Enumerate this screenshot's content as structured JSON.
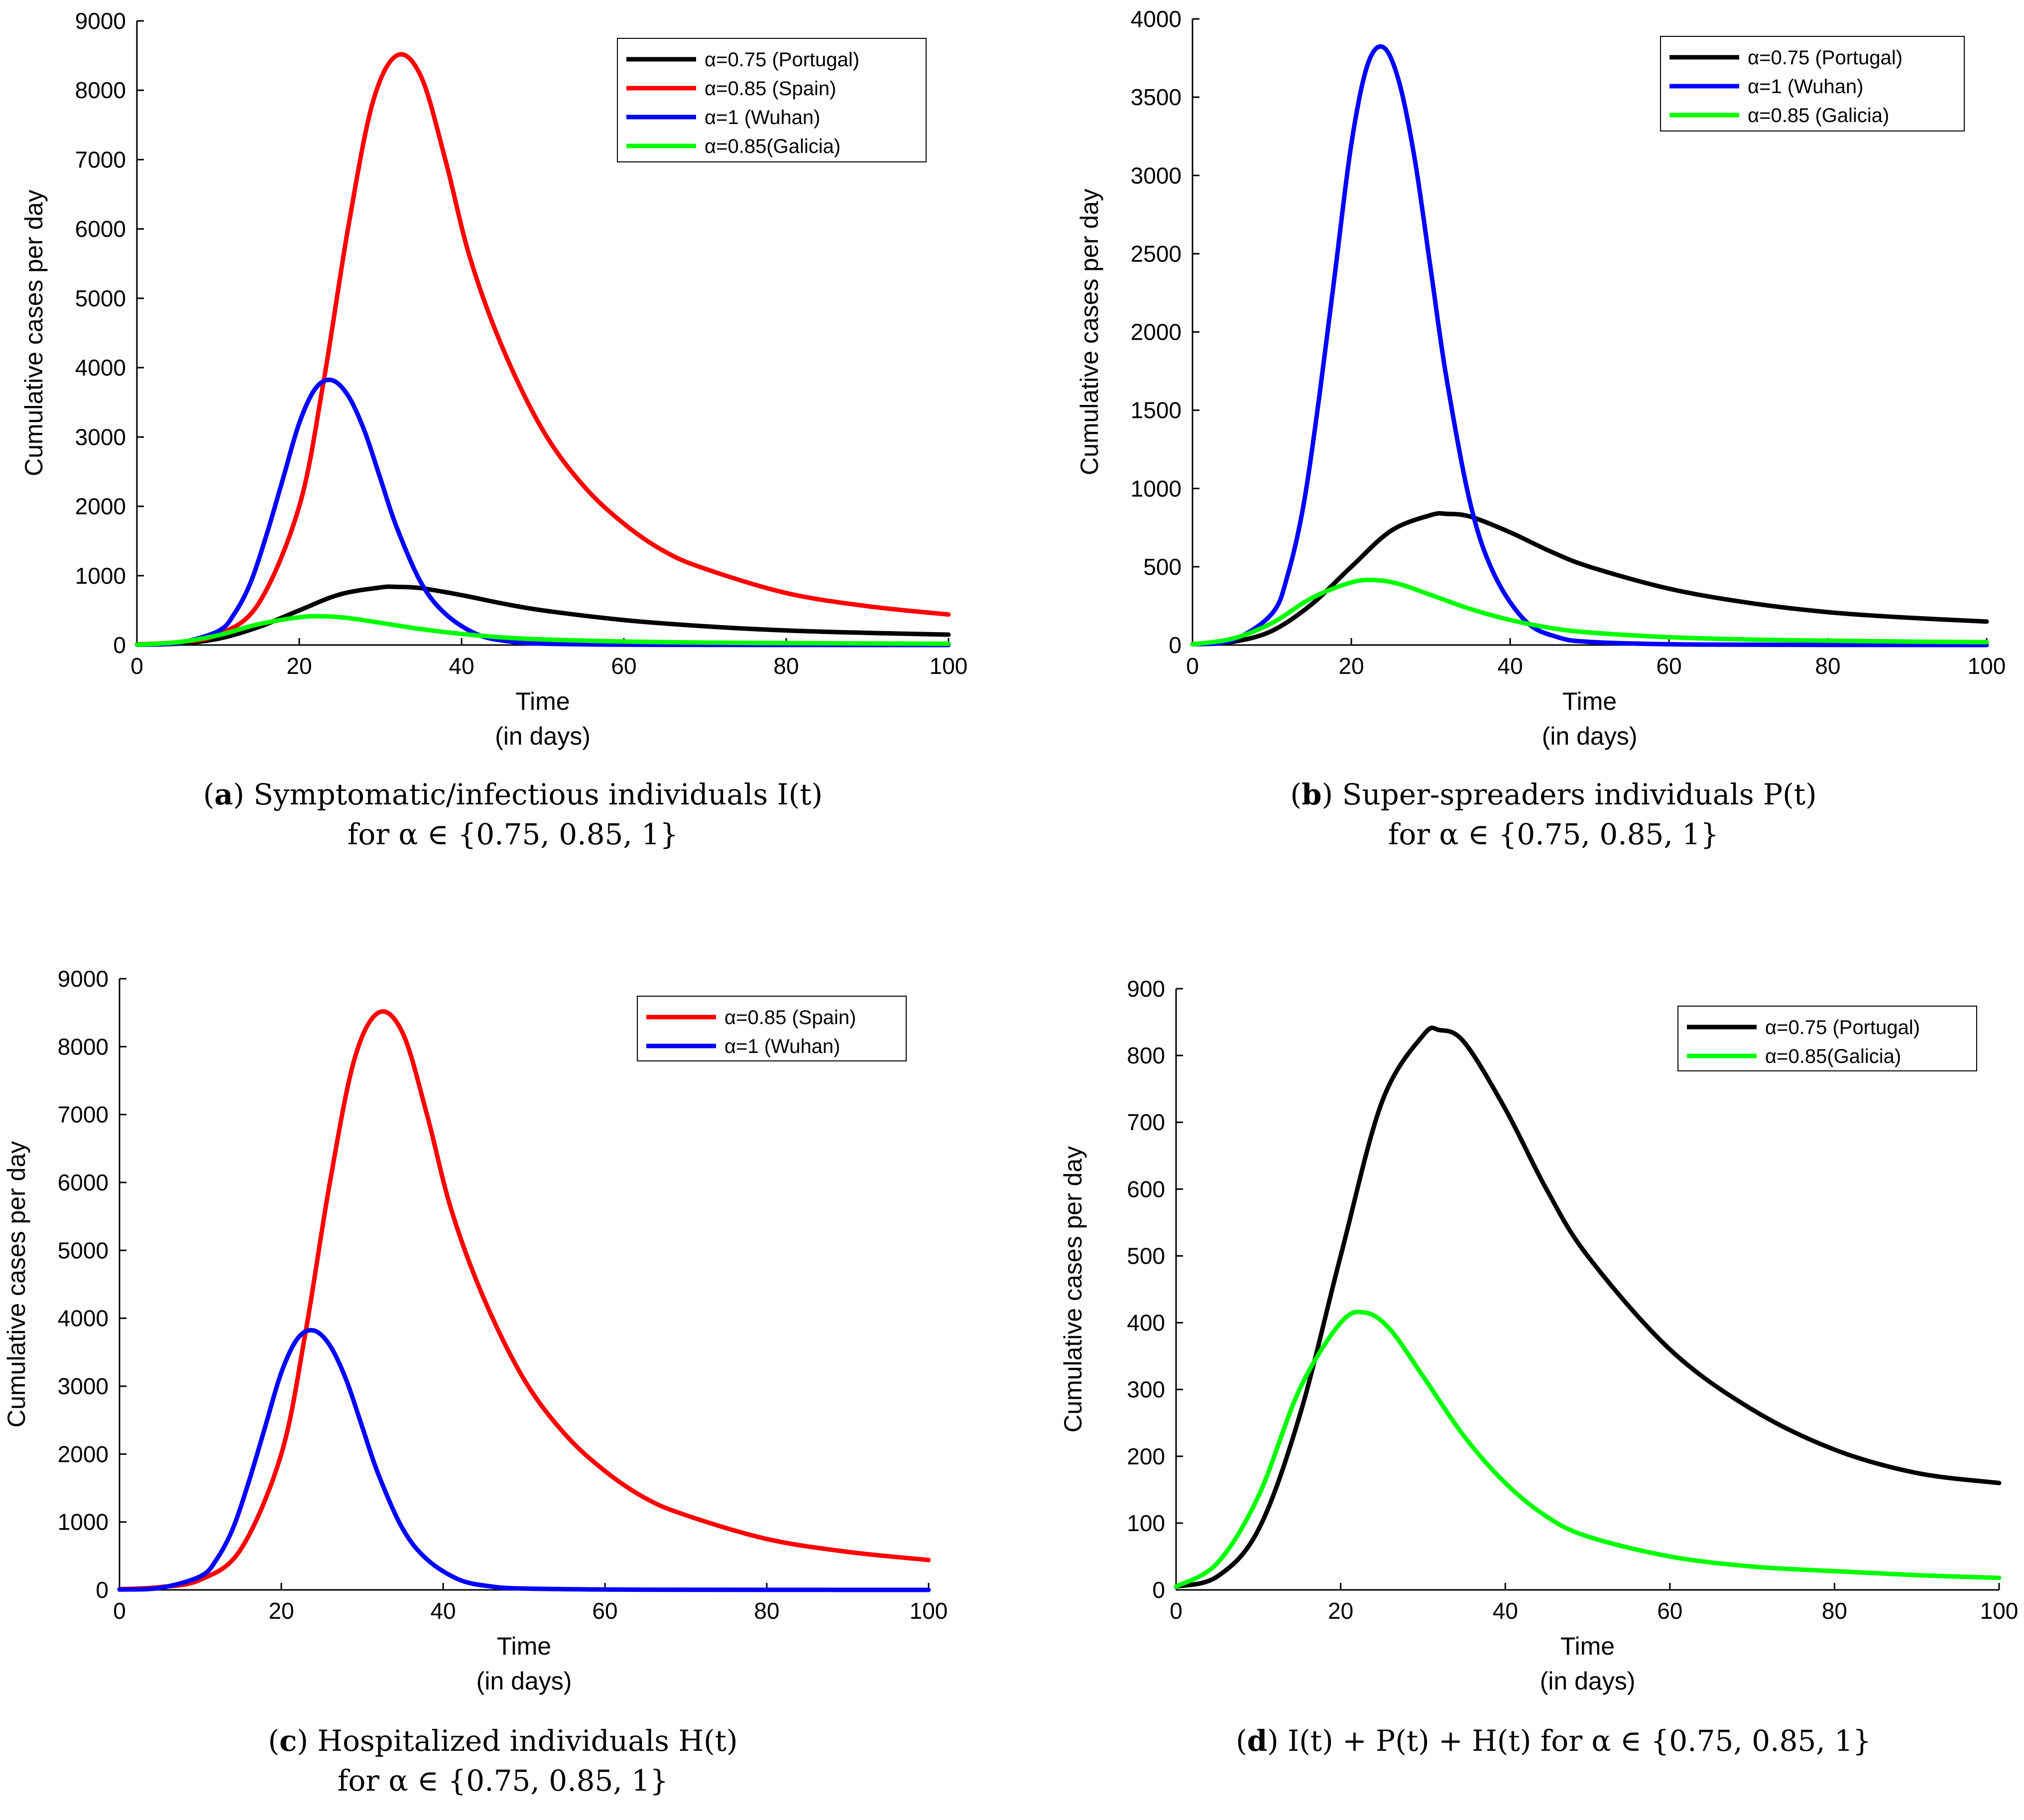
{
  "chart_data": [
    {
      "type": "line",
      "id": "a",
      "caption": {
        "letter": "a",
        "line1": "Symptomatic/infectious individuals I(t)",
        "line2": "for α ∈ {0.75, 0.85, 1}"
      },
      "xlabel": "Time",
      "xlabel2": "(in days)",
      "ylabel": "Cumulative cases per day",
      "xlim": [
        0,
        100
      ],
      "ylim": [
        0,
        9000
      ],
      "xticks": [
        0,
        20,
        40,
        60,
        80,
        100
      ],
      "yticks": [
        0,
        1000,
        2000,
        3000,
        4000,
        5000,
        6000,
        7000,
        8000,
        9000
      ],
      "legend_position": "top-right",
      "series": [
        {
          "name": "α=0.75 (Portugal)",
          "color": "#000000",
          "x": [
            0,
            5,
            10,
            15,
            20,
            25,
            30,
            32,
            35,
            40,
            45,
            50,
            60,
            70,
            80,
            90,
            100
          ],
          "y": [
            5,
            20,
            90,
            260,
            500,
            730,
            830,
            838,
            820,
            720,
            600,
            500,
            360,
            270,
            210,
            175,
            150
          ]
        },
        {
          "name": "α=0.85 (Spain)",
          "color": "#ff0000",
          "x": [
            0,
            5,
            10,
            15,
            20,
            23,
            26,
            29,
            32,
            35,
            38,
            41,
            45,
            50,
            55,
            60,
            65,
            70,
            80,
            90,
            100
          ],
          "y": [
            10,
            40,
            150,
            600,
            2000,
            3800,
            6000,
            7800,
            8500,
            8200,
            7000,
            5600,
            4300,
            3100,
            2300,
            1750,
            1350,
            1100,
            750,
            560,
            440
          ]
        },
        {
          "name": "α=1 (Wuhan)",
          "color": "#0000ff",
          "x": [
            0,
            5,
            10,
            12,
            14,
            16,
            18,
            20,
            22,
            24,
            26,
            28,
            30,
            32,
            35,
            38,
            42,
            46,
            50,
            60,
            70,
            80,
            100
          ],
          "y": [
            5,
            30,
            200,
            450,
            900,
            1600,
            2400,
            3200,
            3700,
            3820,
            3600,
            3100,
            2400,
            1700,
            900,
            450,
            150,
            50,
            20,
            5,
            2,
            1,
            0
          ]
        },
        {
          "name": "α=0.85(Galicia)",
          "color": "#00ff00",
          "x": [
            0,
            5,
            10,
            15,
            20,
            23,
            26,
            30,
            35,
            40,
            45,
            50,
            60,
            70,
            80,
            90,
            100
          ],
          "y": [
            5,
            40,
            140,
            300,
            400,
            415,
            390,
            320,
            230,
            160,
            110,
            80,
            50,
            35,
            28,
            22,
            18
          ]
        }
      ]
    },
    {
      "type": "line",
      "id": "b",
      "caption": {
        "letter": "b",
        "line1": "Super-spreaders individuals P(t)",
        "line2": "for α ∈ {0.75, 0.85, 1}"
      },
      "xlabel": "Time",
      "xlabel2": "(in days)",
      "ylabel": "Cumulative cases per day",
      "xlim": [
        0,
        100
      ],
      "ylim": [
        0,
        4000
      ],
      "xticks": [
        0,
        20,
        40,
        60,
        80,
        100
      ],
      "yticks": [
        0,
        500,
        1000,
        1500,
        2000,
        2500,
        3000,
        3500,
        4000
      ],
      "legend_position": "top-right",
      "series": [
        {
          "name": "α=0.75 (Portugal)",
          "color": "#000000",
          "x": [
            0,
            5,
            10,
            15,
            20,
            25,
            30,
            32,
            35,
            40,
            45,
            50,
            60,
            70,
            80,
            90,
            100
          ],
          "y": [
            5,
            20,
            90,
            260,
            500,
            730,
            830,
            838,
            820,
            720,
            600,
            500,
            360,
            270,
            210,
            175,
            150
          ]
        },
        {
          "name": "α=1 (Wuhan)",
          "color": "#0000ff",
          "x": [
            0,
            5,
            10,
            12,
            14,
            16,
            18,
            20,
            22,
            24,
            26,
            28,
            30,
            32,
            35,
            38,
            42,
            46,
            50,
            60,
            70,
            80,
            100
          ],
          "y": [
            5,
            30,
            200,
            450,
            900,
            1600,
            2400,
            3200,
            3700,
            3820,
            3600,
            3100,
            2400,
            1700,
            900,
            450,
            150,
            50,
            20,
            5,
            2,
            1,
            0
          ]
        },
        {
          "name": "α=0.85 (Galicia)",
          "color": "#00ff00",
          "x": [
            0,
            5,
            10,
            15,
            20,
            23,
            26,
            30,
            35,
            40,
            45,
            50,
            60,
            70,
            80,
            90,
            100
          ],
          "y": [
            5,
            40,
            140,
            300,
            400,
            415,
            390,
            320,
            230,
            160,
            110,
            80,
            50,
            35,
            28,
            22,
            18
          ]
        }
      ]
    },
    {
      "type": "line",
      "id": "c",
      "caption": {
        "letter": "c",
        "line1": "Hospitalized individuals H(t)",
        "line2": "for α ∈ {0.75, 0.85, 1}"
      },
      "xlabel": "Time",
      "xlabel2": "(in days)",
      "ylabel": "Cumulative cases per day",
      "xlim": [
        0,
        100
      ],
      "ylim": [
        0,
        9000
      ],
      "xticks": [
        0,
        20,
        40,
        60,
        80,
        100
      ],
      "yticks": [
        0,
        1000,
        2000,
        3000,
        4000,
        5000,
        6000,
        7000,
        8000,
        9000
      ],
      "legend_position": "top-right",
      "series": [
        {
          "name": "α=0.85 (Spain)",
          "color": "#ff0000",
          "x": [
            0,
            5,
            10,
            15,
            20,
            23,
            26,
            29,
            32,
            35,
            38,
            41,
            45,
            50,
            55,
            60,
            65,
            70,
            80,
            90,
            100
          ],
          "y": [
            10,
            40,
            150,
            600,
            2000,
            3800,
            6000,
            7800,
            8500,
            8200,
            7000,
            5600,
            4300,
            3100,
            2300,
            1750,
            1350,
            1100,
            750,
            560,
            440
          ]
        },
        {
          "name": "α=1 (Wuhan)",
          "color": "#0000ff",
          "x": [
            0,
            5,
            10,
            12,
            14,
            16,
            18,
            20,
            22,
            24,
            26,
            28,
            30,
            32,
            35,
            38,
            42,
            46,
            50,
            60,
            70,
            80,
            100
          ],
          "y": [
            5,
            30,
            200,
            450,
            900,
            1600,
            2400,
            3200,
            3700,
            3820,
            3600,
            3100,
            2400,
            1700,
            900,
            450,
            150,
            50,
            20,
            5,
            2,
            1,
            0
          ]
        }
      ]
    },
    {
      "type": "line",
      "id": "d",
      "caption": {
        "letter": "d",
        "line1": "I(t) + P(t) + H(t) for α ∈ {0.75, 0.85, 1}",
        "line2": ""
      },
      "xlabel": "Time",
      "xlabel2": "(in days)",
      "ylabel": "Cumulative cases per day",
      "xlim": [
        0,
        100
      ],
      "ylim": [
        0,
        900
      ],
      "xticks": [
        0,
        20,
        40,
        60,
        80,
        100
      ],
      "yticks": [
        0,
        100,
        200,
        300,
        400,
        500,
        600,
        700,
        800,
        900
      ],
      "legend_position": "top-right",
      "series": [
        {
          "name": "α=0.75 (Portugal)",
          "color": "#000000",
          "x": [
            0,
            5,
            10,
            15,
            20,
            25,
            30,
            32,
            35,
            40,
            45,
            50,
            60,
            70,
            80,
            90,
            100
          ],
          "y": [
            5,
            20,
            90,
            260,
            500,
            730,
            830,
            838,
            820,
            720,
            600,
            500,
            360,
            270,
            210,
            175,
            160
          ]
        },
        {
          "name": "α=0.85(Galicia)",
          "color": "#00ff00",
          "x": [
            0,
            5,
            10,
            15,
            20,
            23,
            26,
            30,
            35,
            40,
            45,
            50,
            60,
            70,
            80,
            90,
            100
          ],
          "y": [
            5,
            40,
            140,
            300,
            400,
            415,
            390,
            320,
            230,
            160,
            110,
            80,
            50,
            35,
            28,
            22,
            18
          ]
        }
      ]
    }
  ]
}
